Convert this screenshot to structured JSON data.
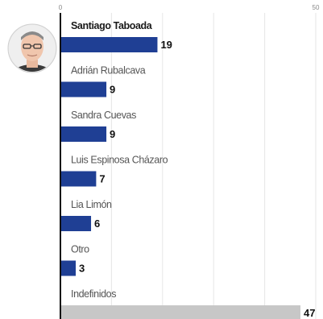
{
  "chart_data": {
    "type": "bar",
    "orientation": "horizontal",
    "title": "",
    "xlabel": "",
    "ylabel": "",
    "xlim": [
      0,
      50
    ],
    "tick_labels": [
      "0",
      "50"
    ],
    "grid": true,
    "categories": [
      "Santiago Taboada",
      "Adrián Rubalcava",
      "Sandra Cuevas",
      "Luis Espinosa Cházaro",
      "Lia Limón",
      "Otro",
      "Indefinidos"
    ],
    "values": [
      19,
      9,
      9,
      7,
      6,
      3,
      47
    ],
    "value_labels": [
      "19",
      "9",
      "9",
      "7",
      "6",
      "3",
      "47"
    ],
    "bar_colors": [
      "#1f3f94",
      "#1f3f94",
      "#1f3f94",
      "#1f3f94",
      "#1f3f94",
      "#1f3f94",
      "#c7c7c7"
    ],
    "highlight_category": "Santiago Taboada",
    "avatar": "portrait-photo"
  }
}
